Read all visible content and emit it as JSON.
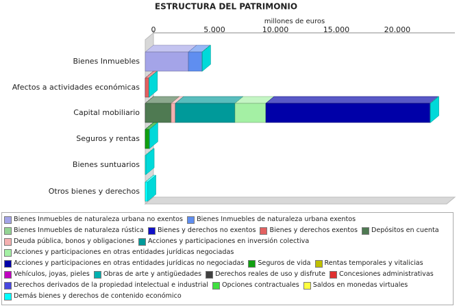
{
  "chart_data": {
    "type": "bar3d_stacked_horizontal",
    "title": "ESTRUCTURA DEL PATRIMONIO",
    "x_label": "millones de euros",
    "categories": [
      "Bienes Inmuebles",
      "Afectos a actividades económicas",
      "Capital mobiliario",
      "Seguros y rentas",
      "Bienes suntuarios",
      "Otros bienes y derechos"
    ],
    "xlim": [
      0,
      24500
    ],
    "xticks": [
      0,
      {
        "value": 5000,
        "label": "5.000"
      },
      {
        "value": 10000,
        "label": "10.000"
      },
      {
        "value": 15000,
        "label": "15.000"
      },
      {
        "value": 20000,
        "label": "20.000"
      }
    ],
    "series": [
      {
        "name": "Bienes Inmuebles de naturaleza urbana no exentos",
        "color": "#a4a4e8",
        "values": [
          3540,
          0,
          0,
          0,
          0,
          0
        ]
      },
      {
        "name": "Bienes Inmuebles de naturaleza urbana exentos",
        "color": "#5f8ef0",
        "values": [
          1120,
          0,
          0,
          0,
          0,
          0
        ]
      },
      {
        "name": "Bienes Inmuebles de naturaleza rústica",
        "color": "#94d494",
        "values": [
          0,
          0,
          0,
          0,
          0,
          0
        ]
      },
      {
        "name": "Bienes y derechos no exentos",
        "color": "#1010c8",
        "values": [
          0,
          0,
          0,
          0,
          0,
          0
        ]
      },
      {
        "name": "Bienes y derechos exentos",
        "color": "#e26060",
        "values": [
          0,
          300,
          0,
          0,
          0,
          0
        ]
      },
      {
        "name": "Depósitos en cuenta",
        "color": "#4f7a52",
        "values": [
          0,
          0,
          2130,
          0,
          0,
          0
        ]
      },
      {
        "name": "Deuda pública, bonos y obligaciones",
        "color": "#f4b0b0",
        "values": [
          0,
          0,
          340,
          0,
          0,
          0
        ]
      },
      {
        "name": "Acciones y participaciones en inversión colectiva",
        "color": "#009a9a",
        "values": [
          0,
          0,
          4890,
          0,
          0,
          0
        ]
      },
      {
        "name": "Acciones y participaciones en otras entidades jurídicas negociadas",
        "color": "#a4f0a4",
        "values": [
          0,
          0,
          2530,
          0,
          0,
          0
        ]
      },
      {
        "name": "Acciones y participaciones en otras entidades jurídicas no negociadas",
        "color": "#0000a8",
        "values": [
          0,
          0,
          13480,
          0,
          0,
          0
        ]
      },
      {
        "name": "Seguros de vida",
        "color": "#10a010",
        "values": [
          0,
          0,
          0,
          340,
          0,
          0
        ]
      },
      {
        "name": "Rentas temporales y vitalicias",
        "color": "#c0c000",
        "values": [
          0,
          0,
          0,
          0,
          0,
          0
        ]
      },
      {
        "name": "Vehículos, joyas, pieles",
        "color": "#c000c0",
        "values": [
          0,
          0,
          0,
          0,
          0,
          0
        ]
      },
      {
        "name": "Obras de arte y antigüedades",
        "color": "#00b0b0",
        "values": [
          0,
          0,
          0,
          0,
          0,
          0
        ]
      },
      {
        "name": "Derechos reales de uso y disfrute",
        "color": "#404040",
        "values": [
          0,
          0,
          0,
          0,
          0,
          0
        ]
      },
      {
        "name": "Concesiones administrativas",
        "color": "#e03030",
        "values": [
          0,
          0,
          0,
          0,
          0,
          0
        ]
      },
      {
        "name": "Derechos derivados de la propiedad intelectual e industrial",
        "color": "#4848e0",
        "values": [
          0,
          0,
          0,
          0,
          0,
          0
        ]
      },
      {
        "name": "Opciones contractuales",
        "color": "#40e040",
        "values": [
          0,
          0,
          0,
          0,
          0,
          0
        ]
      },
      {
        "name": "Saldos en monedas virtuales",
        "color": "#ffff40",
        "values": [
          0,
          0,
          0,
          0,
          0,
          0
        ]
      },
      {
        "name": "Demás bienes y derechos de contenido económico",
        "color": "#00ffff",
        "values": [
          30,
          20,
          40,
          20,
          60,
          200
        ]
      }
    ]
  }
}
